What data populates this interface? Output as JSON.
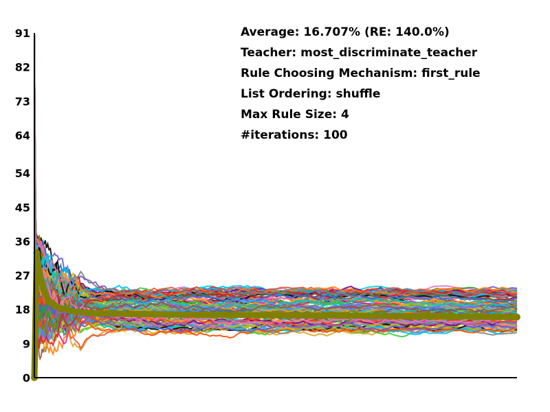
{
  "chart_data": {
    "type": "line",
    "title": "",
    "xlabel": "",
    "ylabel": "",
    "ylim": [
      0,
      91
    ],
    "y_ticks": [
      "0",
      "9",
      "18",
      "27",
      "36",
      "45",
      "54",
      "64",
      "73",
      "82",
      "91"
    ],
    "grid": false,
    "x_range": [
      0,
      100
    ],
    "annotations": [
      "Average: 16.707% (RE: 140.0%)",
      "Teacher: most_discriminate_teacher",
      "Rule Choosing Mechanism: first_rule",
      "List Ordering: shuffle",
      "Max Rule Size: 4",
      "#iterations: 100"
    ],
    "average_series": {
      "color": "#808000",
      "x": [
        0,
        0.5,
        1,
        2,
        3,
        5,
        8,
        12,
        20,
        35,
        60,
        100
      ],
      "values": [
        0,
        33,
        28,
        23,
        20,
        18.5,
        17.5,
        17,
        16.8,
        16.6,
        16.4,
        16
      ]
    },
    "runs": {
      "count": 100,
      "start_value": 91,
      "final_range": [
        12,
        23
      ],
      "early_range": [
        8,
        38
      ],
      "palette": [
        "#4169e1",
        "#e8503c",
        "#2ca02c",
        "#9467bd",
        "#ff7f0e",
        "#17becf",
        "#d62728",
        "#8c564b",
        "#e377c2",
        "#7f7f7f",
        "#bcbd22",
        "#1f77b4",
        "#00ced1",
        "#32cd32",
        "#ff1493",
        "#000000",
        "#6a5acd",
        "#ffa500",
        "#9acd32",
        "#ff69b4",
        "#6495ed",
        "#b22222",
        "#3cb371",
        "#800080",
        "#daa520",
        "#00bfff",
        "#ff4500",
        "#7b68ee",
        "#808000",
        "#2e8b57"
      ]
    }
  }
}
